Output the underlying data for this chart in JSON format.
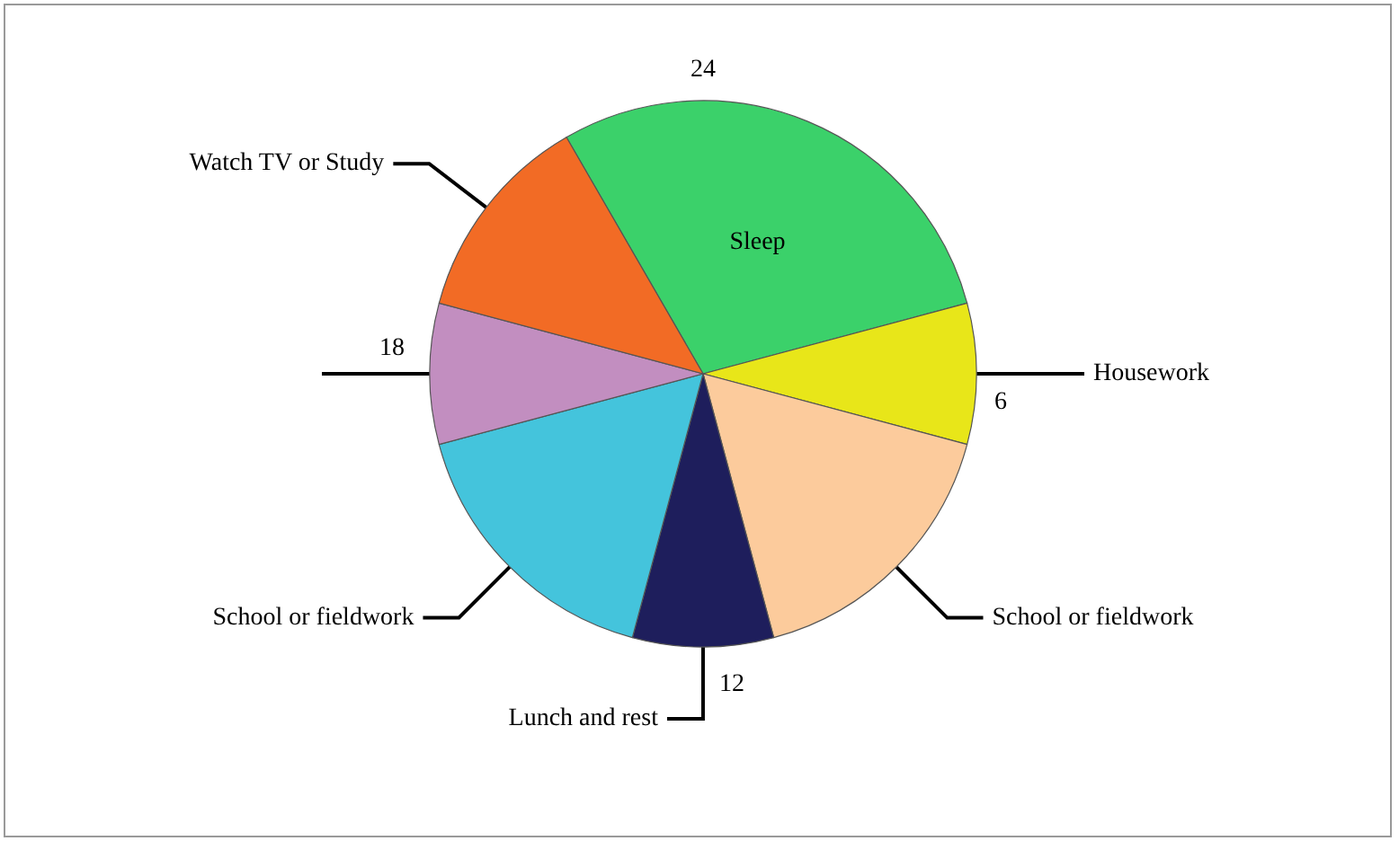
{
  "chart_data": {
    "type": "pie",
    "categories": [
      "Sleep",
      "Housework",
      "School or fieldwork",
      "Lunch and rest",
      "School or fieldwork",
      null,
      "Watch TV or Study"
    ],
    "values": [
      29.17,
      8.33,
      16.67,
      8.33,
      16.67,
      8.33,
      12.5
    ],
    "colors": [
      "#3bd16a",
      "#e8e619",
      "#fccb9c",
      "#1e1e5c",
      "#44c4dc",
      "#c28ec0",
      "#f26b25"
    ],
    "annotations": [
      "24",
      "6",
      "12",
      "18"
    ],
    "legend": false
  }
}
